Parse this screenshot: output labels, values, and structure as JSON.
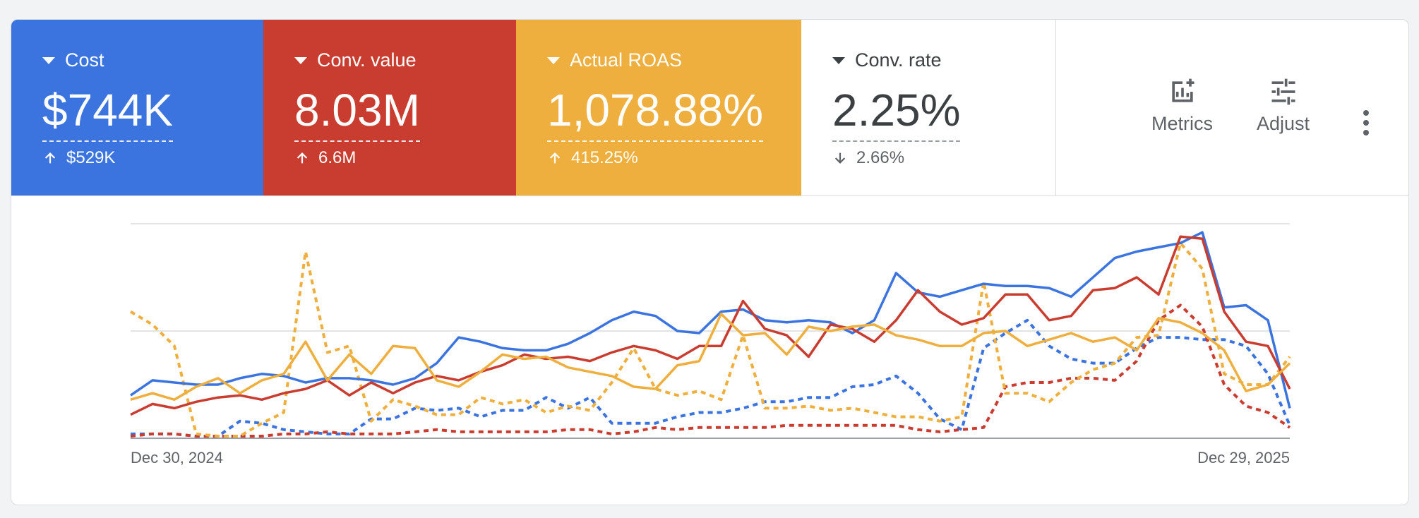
{
  "metrics": [
    {
      "label": "Cost",
      "value": "$744K",
      "delta": "$529K",
      "direction": "up",
      "color": "#3b74df"
    },
    {
      "label": "Conv. value",
      "value": "8.03M",
      "delta": "6.6M",
      "direction": "up",
      "color": "#c93d31"
    },
    {
      "label": "Actual ROAS",
      "value": "1,078.88%",
      "delta": "415.25%",
      "direction": "up",
      "color": "#eeaf3e"
    },
    {
      "label": "Conv. rate",
      "value": "2.25%",
      "delta": "2.66%",
      "direction": "down",
      "color": "#ffffff"
    }
  ],
  "tools": {
    "metrics_label": "Metrics",
    "metrics_icon": "add-chart-icon",
    "adjust_label": "Adjust",
    "adjust_icon": "tune-icon",
    "more_icon": "more-vert-icon"
  },
  "chart_data": {
    "type": "line",
    "x_start": "Dec 30, 2024",
    "x_end": "Dec 29, 2025",
    "grid": true,
    "ylim": [
      0,
      100
    ],
    "series": [
      {
        "key": "cost",
        "color": "#3b74df",
        "dashed": false,
        "values": [
          20,
          27,
          26,
          25,
          25,
          28,
          30,
          29,
          26,
          28,
          28,
          27,
          25,
          28,
          35,
          47,
          45,
          42,
          41,
          41,
          44,
          49,
          55,
          59,
          57,
          50,
          49,
          59,
          60,
          55,
          54,
          55,
          54,
          49,
          55,
          77,
          68,
          66,
          69,
          72,
          71,
          71,
          70,
          66,
          75,
          84,
          87,
          89,
          91,
          96,
          61,
          62,
          55,
          14
        ]
      },
      {
        "key": "conv_value",
        "color": "#c93d31",
        "dashed": false,
        "values": [
          11,
          16,
          14,
          17,
          19,
          20,
          18,
          21,
          23,
          27,
          20,
          26,
          21,
          26,
          29,
          27,
          31,
          34,
          39,
          37,
          38,
          36,
          40,
          43,
          41,
          37,
          43,
          43,
          64,
          51,
          48,
          38,
          53,
          51,
          45,
          55,
          69,
          59,
          53,
          56,
          67,
          67,
          55,
          57,
          69,
          70,
          75,
          67,
          94,
          93,
          59,
          45,
          43,
          23
        ]
      },
      {
        "key": "roas",
        "color": "#eeaf3e",
        "dashed": false,
        "values": [
          18,
          21,
          18,
          24,
          28,
          21,
          27,
          30,
          45,
          27,
          39,
          30,
          43,
          42,
          27,
          24,
          31,
          39,
          37,
          38,
          33,
          31,
          29,
          24,
          23,
          34,
          36,
          58,
          48,
          49,
          39,
          52,
          50,
          52,
          53,
          48,
          46,
          43,
          43,
          49,
          50,
          43,
          46,
          49,
          45,
          47,
          41,
          56,
          54,
          49,
          41,
          22,
          25,
          35
        ]
      },
      {
        "key": "cost_dashed",
        "color": "#3b74df",
        "dashed": true,
        "values": [
          2,
          2,
          2,
          1,
          1,
          8,
          7,
          4,
          3,
          2,
          2,
          9,
          9,
          14,
          13,
          14,
          10,
          13,
          13,
          19,
          14,
          19,
          7,
          7,
          7,
          10,
          12,
          12,
          14,
          17,
          17,
          19,
          19,
          24,
          25,
          29,
          21,
          9,
          4,
          42,
          49,
          55,
          43,
          37,
          35,
          35,
          42,
          47,
          47,
          46,
          46,
          43,
          30,
          6
        ]
      },
      {
        "key": "conv_value_dashed",
        "color": "#c93d31",
        "dashed": true,
        "values": [
          1,
          2,
          2,
          1,
          1,
          1,
          1,
          2,
          2,
          3,
          2,
          2,
          2,
          3,
          4,
          3,
          3,
          3,
          3,
          3,
          4,
          4,
          2,
          3,
          5,
          4,
          5,
          5,
          5,
          5,
          6,
          6,
          6,
          6,
          6,
          6,
          4,
          3,
          4,
          5,
          24,
          26,
          26,
          28,
          28,
          27,
          36,
          55,
          62,
          52,
          25,
          15,
          12,
          5
        ]
      },
      {
        "key": "roas_dashed",
        "color": "#eeaf3e",
        "dashed": true,
        "values": [
          59,
          53,
          43,
          2,
          1,
          1,
          7,
          12,
          87,
          40,
          43,
          8,
          18,
          15,
          11,
          11,
          19,
          16,
          18,
          12,
          15,
          13,
          26,
          42,
          23,
          20,
          22,
          18,
          48,
          14,
          14,
          15,
          13,
          14,
          12,
          10,
          10,
          8,
          10,
          73,
          21,
          21,
          17,
          26,
          32,
          35,
          47,
          48,
          91,
          79,
          30,
          25,
          25,
          38
        ]
      }
    ]
  }
}
